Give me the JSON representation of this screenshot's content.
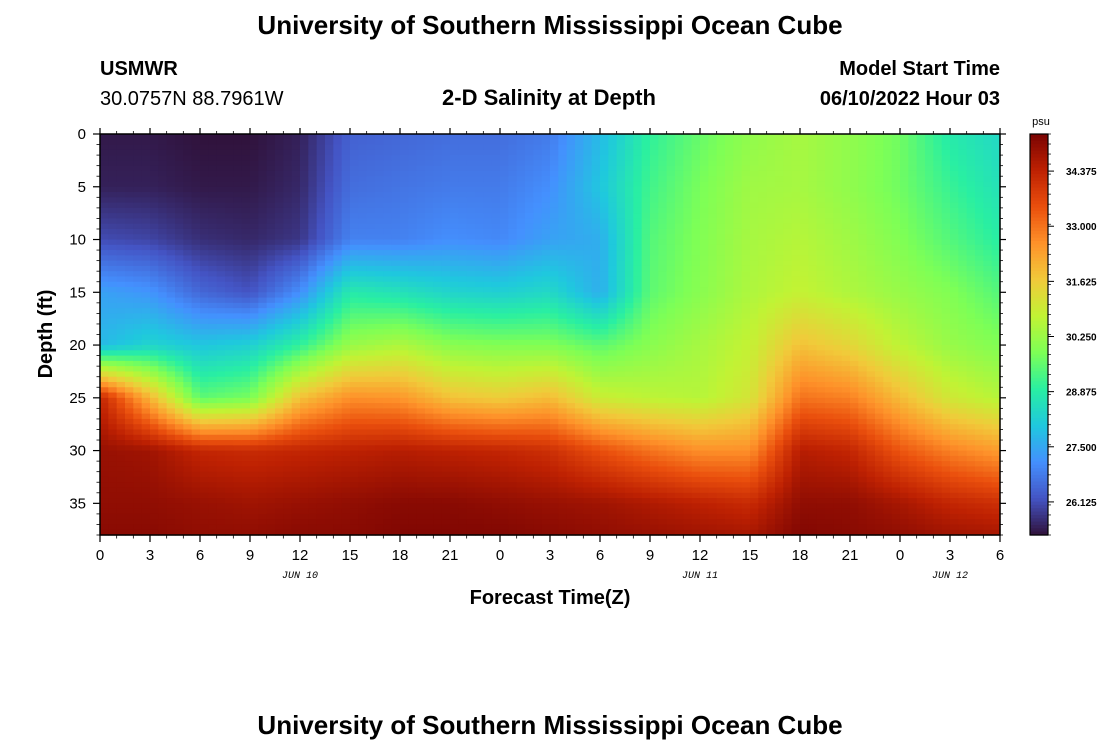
{
  "header": {
    "title": "University of Southern Mississippi Ocean Cube",
    "station_name": "USMWR",
    "station_coords": "30.0757N  88.7961W",
    "subtitle": "2-D Salinity at Depth",
    "model_start_label": "Model Start Time",
    "model_start_value": "06/10/2022 Hour 03"
  },
  "footer": {
    "title": "University of Southern Mississippi Ocean Cube"
  },
  "colors": {
    "colormap": [
      "#30123b",
      "#4454c4",
      "#4490fe",
      "#1fc8de",
      "#29efa2",
      "#7dff56",
      "#c1f334",
      "#f1ca3a",
      "#fe922a",
      "#ea4f0d",
      "#be2102",
      "#7a0403"
    ]
  },
  "chart_data": {
    "type": "heatmap",
    "xlabel": "Forecast Time(Z)",
    "ylabel": "Depth (ft)",
    "x_tick_labels": [
      "0",
      "3",
      "6",
      "9",
      "12",
      "15",
      "18",
      "21",
      "0",
      "3",
      "6",
      "9",
      "12",
      "15",
      "18",
      "21",
      "0",
      "3",
      "6"
    ],
    "day_labels": [
      "JUN 10",
      "JUN 11",
      "JUN 12"
    ],
    "x_range_hours": [
      0,
      54
    ],
    "y_ticks": [
      0,
      5,
      10,
      15,
      20,
      25,
      30,
      35
    ],
    "ylim": [
      0,
      38
    ],
    "y_inverted": true,
    "colorbar": {
      "unit": "psu",
      "ticks": [
        "34.375",
        "33.000",
        "31.625",
        "30.250",
        "28.875",
        "27.500",
        "26.125"
      ],
      "tick_values": [
        34.375,
        33.0,
        31.625,
        30.25,
        28.875,
        27.5,
        26.125
      ],
      "range": [
        25.3,
        35.3
      ]
    },
    "x_hours": [
      0,
      3,
      6,
      9,
      12,
      15,
      18,
      21,
      24,
      27,
      30,
      33,
      36,
      39,
      42,
      45,
      48,
      51,
      54
    ],
    "depths_ft": [
      0,
      5,
      10,
      15,
      20,
      25,
      30,
      35,
      38
    ],
    "salinity_psu": [
      [
        25.4,
        25.5,
        26.1,
        27.4,
        27.8,
        34.3,
        34.9,
        35.0,
        35.1
      ],
      [
        25.4,
        25.5,
        26.0,
        27.2,
        28.3,
        32.0,
        34.8,
        35.0,
        35.1
      ],
      [
        25.3,
        25.4,
        25.7,
        26.5,
        28.0,
        29.5,
        34.3,
        34.9,
        35.0
      ],
      [
        25.3,
        25.4,
        25.6,
        26.2,
        28.2,
        29.8,
        34.2,
        34.8,
        35.0
      ],
      [
        25.5,
        25.6,
        25.8,
        27.1,
        29.0,
        31.8,
        34.3,
        34.9,
        35.1
      ],
      [
        26.4,
        26.6,
        26.9,
        28.8,
        30.2,
        32.6,
        34.4,
        35.0,
        35.1
      ],
      [
        26.5,
        26.7,
        26.9,
        28.6,
        30.5,
        32.5,
        34.5,
        35.1,
        35.2
      ],
      [
        26.6,
        26.8,
        27.1,
        28.3,
        30.0,
        31.8,
        34.4,
        35.1,
        35.2
      ],
      [
        26.6,
        26.8,
        27.0,
        28.2,
        29.9,
        31.6,
        34.3,
        35.0,
        35.2
      ],
      [
        26.8,
        27.1,
        27.4,
        28.4,
        29.9,
        31.9,
        34.1,
        34.9,
        35.1
      ],
      [
        27.8,
        28.0,
        27.6,
        27.6,
        29.5,
        30.9,
        33.5,
        34.8,
        35.0
      ],
      [
        29.0,
        29.2,
        29.4,
        29.5,
        30.0,
        30.7,
        33.0,
        34.6,
        34.9
      ],
      [
        29.6,
        29.8,
        29.9,
        30.0,
        30.4,
        30.6,
        32.6,
        34.4,
        34.8
      ],
      [
        30.1,
        30.3,
        30.4,
        30.5,
        30.8,
        31.1,
        32.6,
        34.2,
        34.7
      ],
      [
        30.4,
        30.4,
        30.6,
        30.8,
        31.8,
        33.0,
        34.5,
        35.0,
        35.2
      ],
      [
        30.1,
        30.1,
        30.3,
        30.5,
        31.4,
        32.8,
        34.3,
        35.0,
        35.1
      ],
      [
        29.7,
        29.7,
        29.9,
        30.2,
        30.7,
        31.9,
        33.4,
        34.7,
        35.0
      ],
      [
        28.8,
        29.1,
        29.4,
        29.9,
        30.2,
        31.0,
        32.8,
        34.3,
        34.8
      ],
      [
        28.4,
        28.6,
        28.9,
        29.4,
        29.9,
        30.6,
        32.4,
        34.1,
        34.7
      ]
    ]
  }
}
